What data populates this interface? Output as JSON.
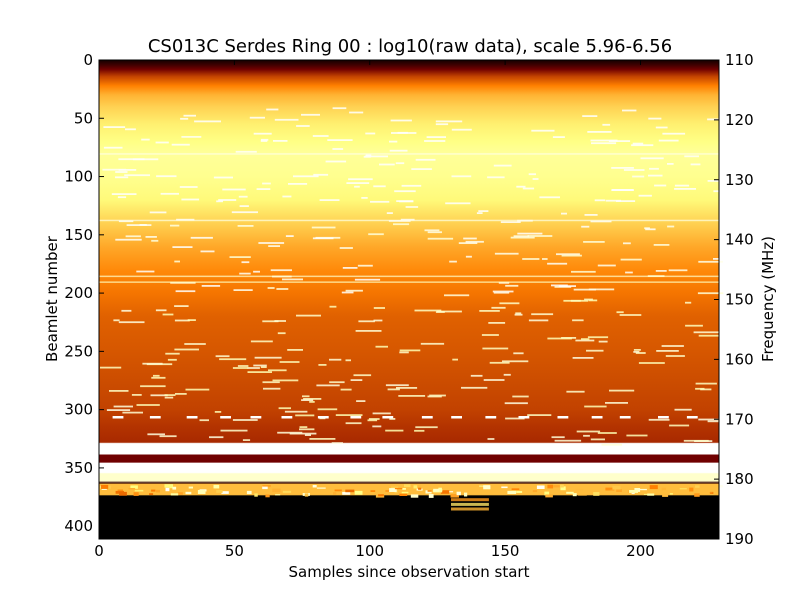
{
  "chart_data": {
    "type": "heatmap",
    "title": "CS013C Serdes Ring 00 : log10(raw data), scale 5.96-6.56",
    "xlabel": "Samples since observation start",
    "ylabel": "Beamlet number",
    "y2label": "Frequency (MHz)",
    "xlim": [
      0,
      229
    ],
    "ylim": [
      411,
      0
    ],
    "y2lim": [
      190,
      110
    ],
    "colormap": "afmhot",
    "color_scale": [
      5.96,
      6.56
    ],
    "x_ticks": [
      "0",
      "50",
      "100",
      "150",
      "200"
    ],
    "x_tick_values": [
      0,
      50,
      100,
      150,
      200
    ],
    "y_ticks": [
      "0",
      "50",
      "100",
      "150",
      "200",
      "250",
      "300",
      "350",
      "400"
    ],
    "y_tick_values": [
      0,
      50,
      100,
      150,
      200,
      250,
      300,
      350,
      400
    ],
    "y2_ticks": [
      "110",
      "120",
      "130",
      "140",
      "150",
      "160",
      "170",
      "180",
      "190"
    ],
    "y2_tick_values": [
      110,
      120,
      130,
      140,
      150,
      160,
      170,
      180,
      190
    ],
    "row_profile": {
      "beamlets": [
        0,
        4,
        8,
        14,
        22,
        30,
        40,
        55,
        70,
        80,
        100,
        120,
        135,
        145,
        160,
        180,
        200,
        220,
        250,
        275,
        300,
        315,
        328,
        329,
        338,
        339,
        345,
        346,
        354,
        355,
        361,
        363,
        364,
        373,
        374,
        411
      ],
      "levels": [
        0.04,
        0.12,
        0.22,
        0.38,
        0.5,
        0.6,
        0.66,
        0.72,
        0.76,
        0.8,
        0.78,
        0.74,
        0.68,
        0.64,
        0.58,
        0.52,
        0.48,
        0.44,
        0.42,
        0.4,
        0.38,
        0.35,
        0.33,
        1.0,
        1.0,
        0.22,
        0.22,
        1.0,
        1.0,
        0.9,
        0.9,
        0.1,
        0.62,
        0.62,
        0.0,
        0.0
      ]
    }
  }
}
